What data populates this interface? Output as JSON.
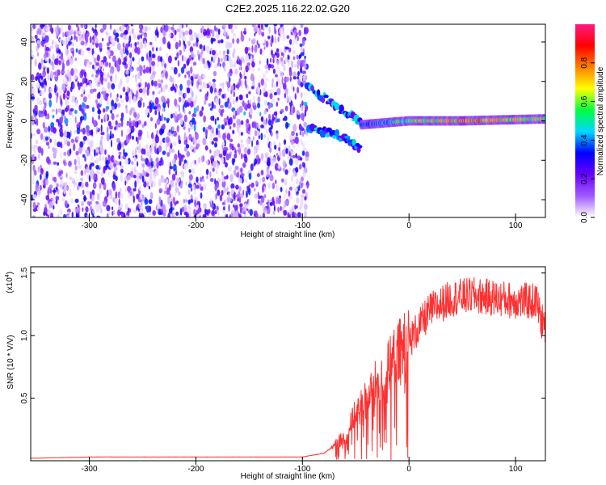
{
  "title": "C2E2.2025.116.22.02.G20",
  "chart_data": [
    {
      "type": "heatmap",
      "title": "C2E2.2025.116.22.02.G20",
      "xlabel": "Height of straight line (km)",
      "ylabel": "Frequency (Hz)",
      "xlim": [
        -355,
        128
      ],
      "ylim": [
        -49,
        49
      ],
      "x_ticks": [
        -300,
        -200,
        -100,
        0,
        100
      ],
      "x_tick_labels": [
        "-300",
        "-200",
        "-100",
        "0",
        "100"
      ],
      "y_ticks": [
        -40,
        -20,
        0,
        20,
        40
      ],
      "y_tick_labels": [
        "-40",
        "-20",
        "0",
        "20",
        "40"
      ],
      "grid": false,
      "colorbar": {
        "label": "Normalized spectral amplitude",
        "range": [
          0,
          1
        ],
        "ticks": [
          0.0,
          0.2,
          0.4,
          0.6,
          0.8
        ],
        "tick_labels": [
          "0.0",
          "0.2",
          "0.4",
          "0.6",
          "0.8"
        ],
        "colormap": [
          "#ffffff",
          "#a05aff",
          "#6a00ff",
          "#0000ff",
          "#00d8ff",
          "#00ff40",
          "#ffff00",
          "#ff8000",
          "#ff0000",
          "#ff1a80"
        ]
      },
      "features": {
        "noise_region_x": [
          -355,
          -95
        ],
        "noise_level": 0.18,
        "central_band_y": [
          -5,
          9
        ],
        "split_tracks": [
          {
            "x": [
              -95,
              -75,
              -60,
              -45
            ],
            "y": [
              17,
              10,
              4,
              0
            ]
          },
          {
            "x": [
              -95,
              -75,
              -60,
              -45
            ],
            "y": [
              -3,
              -6,
              -9,
              -14
            ]
          }
        ],
        "carrier": {
          "x": [
            -45,
            0,
            50,
            128
          ],
          "y": [
            -2,
            0,
            0,
            1
          ],
          "amplitude": [
            0.35,
            0.65,
            0.8,
            0.7
          ]
        }
      }
    },
    {
      "type": "line",
      "xlabel": "Height of straight line (km)",
      "ylabel": "SNR (10 * V/V)",
      "y_scale_label": "(x10",
      "y_scale_exponent": "4",
      "xlim": [
        -355,
        128
      ],
      "ylim": [
        0,
        1.55
      ],
      "x_ticks": [
        -300,
        -200,
        -100,
        0,
        100
      ],
      "x_tick_labels": [
        "-300",
        "-200",
        "-100",
        "0",
        "100"
      ],
      "y_ticks": [
        0.5,
        1.0,
        1.5
      ],
      "y_tick_labels": [
        "0.5",
        "1.0",
        "1.5"
      ],
      "grid": false,
      "series": [
        {
          "color": "#ff3030",
          "x": [
            -355,
            -300,
            -250,
            -200,
            -150,
            -100,
            -80,
            -70,
            -60,
            -50,
            -40,
            -30,
            -20,
            -15,
            -10,
            0,
            20,
            40,
            60,
            80,
            100,
            120,
            124,
            128
          ],
          "y": [
            0.02,
            0.03,
            0.03,
            0.03,
            0.03,
            0.03,
            0.06,
            0.12,
            0.2,
            0.38,
            0.5,
            0.62,
            0.72,
            0.8,
            0.85,
            0.95,
            1.2,
            1.3,
            1.32,
            1.3,
            1.28,
            1.27,
            1.12,
            1.08
          ],
          "noise_amplitude": 0.15
        }
      ]
    }
  ]
}
